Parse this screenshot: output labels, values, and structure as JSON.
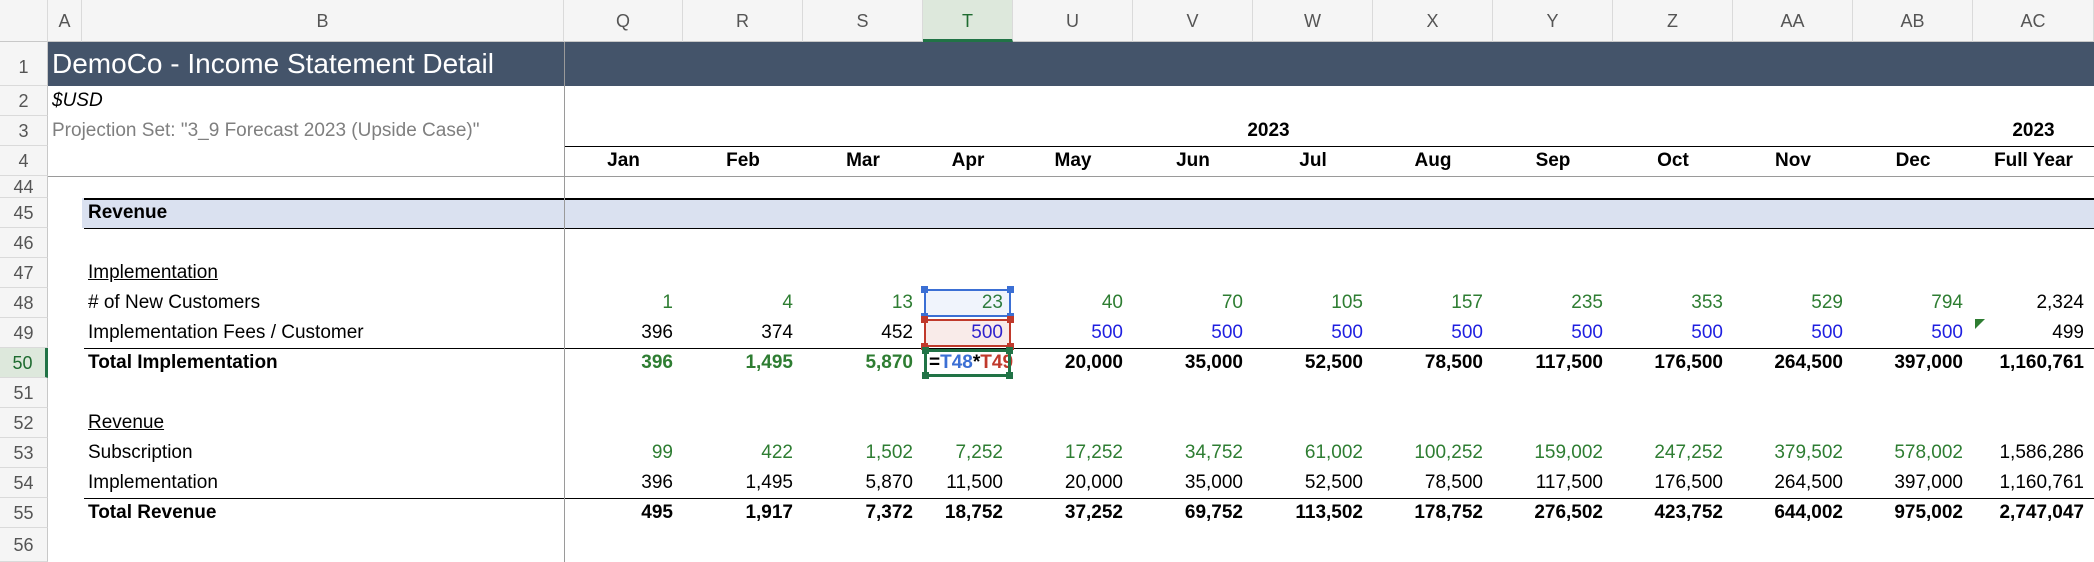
{
  "columns": [
    "A",
    "B",
    "Q",
    "R",
    "S",
    "T",
    "U",
    "V",
    "W",
    "X",
    "Y",
    "Z",
    "AA",
    "AB",
    "AC"
  ],
  "selected_column": "T",
  "rows": [
    "1",
    "2",
    "3",
    "4",
    "44",
    "45",
    "46",
    "47",
    "48",
    "49",
    "50",
    "51",
    "52",
    "53",
    "54",
    "55",
    "56"
  ],
  "selected_row": "50",
  "title": "DemoCo - Income Statement Detail",
  "currency": "$USD",
  "projection_set": "Projection Set: \"3_9 Forecast 2023 (Upside Case)\"",
  "year_label": "2023",
  "fy_year_label": "2023",
  "months": [
    "Jan",
    "Feb",
    "Mar",
    "Apr",
    "May",
    "Jun",
    "Jul",
    "Aug",
    "Sep",
    "Oct",
    "Nov",
    "Dec"
  ],
  "fy_label": "Full Year",
  "section_revenue": "Revenue",
  "implementation_header": "Implementation",
  "new_customers": {
    "label": "# of New Customers",
    "values": [
      "1",
      "4",
      "13",
      "23",
      "40",
      "70",
      "105",
      "157",
      "235",
      "353",
      "529",
      "794"
    ],
    "total": "2,324"
  },
  "fees_per_customer": {
    "label": "Implementation Fees / Customer",
    "values": [
      "396",
      "374",
      "452",
      "500",
      "500",
      "500",
      "500",
      "500",
      "500",
      "500",
      "500",
      "500"
    ],
    "total": "499"
  },
  "total_implementation": {
    "label": "Total Implementation",
    "values": [
      "396",
      "1,495",
      "5,870",
      "",
      "20,000",
      "35,000",
      "52,500",
      "78,500",
      "117,500",
      "176,500",
      "264,500",
      "397,000"
    ],
    "total": "1,160,761"
  },
  "editing_formula": {
    "eq": "=",
    "ref1": "T48",
    "op": "*",
    "ref2": "T49",
    "ref1_color": "#3b6fd4",
    "ref2_color": "#c0392b"
  },
  "revenue_header": "Revenue",
  "subscription": {
    "label": "Subscription",
    "values": [
      "99",
      "422",
      "1,502",
      "7,252",
      "17,252",
      "34,752",
      "61,002",
      "100,252",
      "159,002",
      "247,252",
      "379,502",
      "578,002"
    ],
    "total": "1,586,286"
  },
  "implementation_rev": {
    "label": "Implementation",
    "values": [
      "396",
      "1,495",
      "5,870",
      "11,500",
      "20,000",
      "35,000",
      "52,500",
      "78,500",
      "117,500",
      "176,500",
      "264,500",
      "397,000"
    ],
    "total": "1,160,761"
  },
  "total_revenue": {
    "label": "Total Revenue",
    "values": [
      "495",
      "1,917",
      "7,372",
      "18,752",
      "37,252",
      "69,752",
      "113,502",
      "178,752",
      "276,502",
      "423,752",
      "644,002",
      "975,002"
    ],
    "total": "2,747,047"
  },
  "colors": {
    "title_bar": "#44546a",
    "section_band": "#dae1f0",
    "input_green": "#2e7d32",
    "input_blue": "#1f1fe0",
    "selection_green": "#217346"
  }
}
